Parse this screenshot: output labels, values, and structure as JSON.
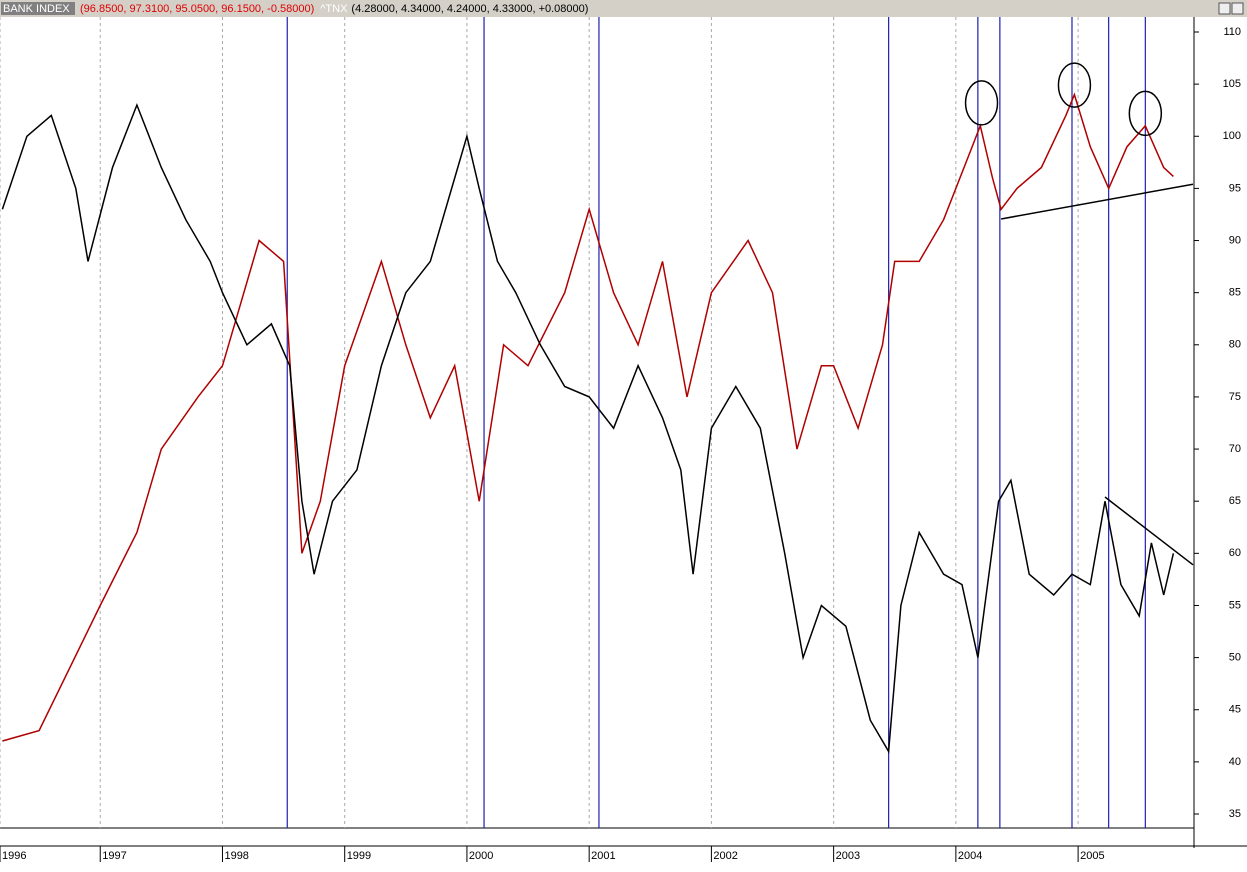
{
  "chart_data": {
    "type": "line",
    "header": {
      "name": "BANK INDEX",
      "name_values": "(96.8500, 97.3100, 95.0500, 96.1500, -0.58000)",
      "second_name": "^TNX",
      "second_values": "(4.28000, 4.34000, 4.24000, 4.33000, +0.08000)"
    },
    "xlim": [
      1996.18,
      2005.94
    ],
    "xticks": [
      {
        "value": 1996.18,
        "label": "1996"
      },
      1997,
      1998,
      1999,
      2000,
      2001,
      2002,
      2003,
      2004,
      2005
    ],
    "ylim": [
      35,
      110
    ],
    "yticks": [
      35,
      40,
      45,
      50,
      55,
      60,
      65,
      70,
      75,
      80,
      85,
      90,
      95,
      100,
      105,
      110
    ],
    "grid": true,
    "series": [
      {
        "name": "BANK INDEX",
        "color": "#b00000",
        "x": [
          1996.2,
          1996.5,
          1997.0,
          1997.3,
          1997.5,
          1997.8,
          1998.0,
          1998.3,
          1998.5,
          1998.65,
          1998.8,
          1999.0,
          1999.3,
          1999.5,
          1999.7,
          1999.9,
          2000.1,
          2000.3,
          2000.5,
          2000.8,
          2001.0,
          2001.2,
          2001.4,
          2001.6,
          2001.8,
          2002.0,
          2002.3,
          2002.5,
          2002.7,
          2002.9,
          2003.0,
          2003.2,
          2003.4,
          2003.5,
          2003.7,
          2003.9,
          2004.1,
          2004.2,
          2004.3,
          2004.37,
          2004.5,
          2004.7,
          2004.9,
          2004.97,
          2005.1,
          2005.25,
          2005.4,
          2005.55,
          2005.7,
          2005.78
        ],
        "values": [
          42,
          43,
          55,
          62,
          70,
          75,
          78,
          90,
          88,
          60,
          65,
          78,
          88,
          80,
          73,
          78,
          65,
          80,
          78,
          85,
          93,
          85,
          80,
          88,
          75,
          85,
          90,
          85,
          70,
          78,
          78,
          72,
          80,
          88,
          88,
          92,
          98,
          101,
          96,
          93,
          95,
          97,
          102,
          104,
          99,
          95,
          99,
          101,
          97,
          96.15
        ]
      },
      {
        "name": "^TNX",
        "color": "#000000",
        "x": [
          1996.2,
          1996.4,
          1996.6,
          1996.8,
          1996.9,
          1997.1,
          1997.3,
          1997.5,
          1997.7,
          1997.9,
          1998.0,
          1998.2,
          1998.4,
          1998.55,
          1998.65,
          1998.75,
          1998.9,
          1999.1,
          1999.3,
          1999.5,
          1999.7,
          1999.9,
          2000.0,
          2000.1,
          2000.25,
          2000.4,
          2000.6,
          2000.8,
          2001.0,
          2001.2,
          2001.4,
          2001.6,
          2001.75,
          2001.85,
          2002.0,
          2002.2,
          2002.4,
          2002.6,
          2002.75,
          2002.9,
          2003.1,
          2003.3,
          2003.45,
          2003.55,
          2003.7,
          2003.9,
          2004.05,
          2004.18,
          2004.35,
          2004.45,
          2004.6,
          2004.8,
          2004.95,
          2005.1,
          2005.22,
          2005.35,
          2005.5,
          2005.6,
          2005.7,
          2005.78
        ],
        "values": [
          93,
          100,
          102,
          95,
          88,
          97,
          103,
          97,
          92,
          88,
          85,
          80,
          82,
          78,
          65,
          58,
          65,
          68,
          78,
          85,
          88,
          96,
          100,
          95,
          88,
          85,
          80,
          76,
          75,
          72,
          78,
          73,
          68,
          58,
          72,
          76,
          72,
          60,
          50,
          55,
          53,
          44,
          41,
          55,
          62,
          58,
          57,
          50,
          65,
          67,
          58,
          56,
          58,
          57,
          65,
          57,
          54,
          61,
          56,
          60
        ]
      }
    ],
    "vlines": [
      1998.53,
      2000.14,
      2001.08,
      2003.45,
      2004.18,
      2004.36,
      2004.95,
      2005.25,
      2005.55
    ],
    "vline_color": "#1f1fb0",
    "trendlines": [
      {
        "x": [
          2004.37,
          2005.94
        ],
        "values": [
          92.07,
          95.4
        ]
      },
      {
        "x": [
          2005.22,
          2005.94
        ],
        "values": [
          65.4,
          58.9
        ]
      }
    ],
    "circles": [
      {
        "x": 2004.21,
        "value": 103.2
      },
      {
        "x": 2004.97,
        "value": 104.9
      },
      {
        "x": 2005.55,
        "value": 102.2
      }
    ]
  }
}
